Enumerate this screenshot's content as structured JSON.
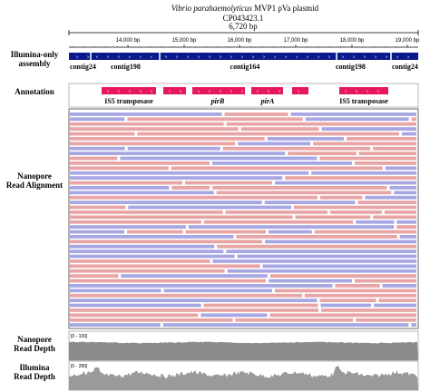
{
  "header": {
    "species": "Vibrio parahaemolyticus",
    "title_rest": "MVP1 pVa plasmid",
    "accession": "CP043423.1",
    "span": "6,720 bp"
  },
  "ruler": {
    "ticks": [
      "14,000 bp",
      "15,000 bp",
      "16,000 bp",
      "17,000 bp",
      "18,000 bp",
      "19,000 bp"
    ]
  },
  "tracks": {
    "assembly": {
      "label": "Illumina-only assembly",
      "contigs": [
        "contig24",
        "contig198",
        "contig164",
        "contig198",
        "contig24"
      ]
    },
    "annotation": {
      "label": "Annotation",
      "genes": [
        "IS5 transposase",
        "pirB",
        "pirA",
        "IS5 transposase"
      ]
    },
    "alignment": {
      "label": "Nanopore Read Alignment"
    },
    "nanopore_depth": {
      "label": "Nanopore Read Depth",
      "range": "[0 - 100]"
    },
    "illumina_depth": {
      "label": "Illumina Read Depth",
      "range": "[0 - 289]"
    }
  }
}
